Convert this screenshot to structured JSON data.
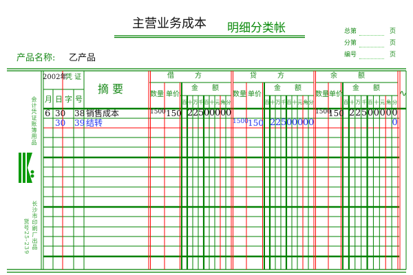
{
  "title": {
    "account": "主营业务成本",
    "ledger_type": "明细分类帐"
  },
  "pages": [
    {
      "label": "总第",
      "suffix": "页"
    },
    {
      "label": "分第",
      "suffix": "页"
    },
    {
      "label": "编号",
      "suffix": "页"
    }
  ],
  "product": {
    "label": "产品名称:",
    "value": "乙产品"
  },
  "side": {
    "top_text": "会计凭证账簿用品",
    "bottom_text_1": "长沙市印刷厂出品",
    "bottom_text_2": "货号25-239",
    "logo": "logo"
  },
  "header": {
    "year": "2002年",
    "voucher": "凭 证",
    "month": "月",
    "day": "日",
    "word": "字",
    "number": "号",
    "summary": "摘  要",
    "debit": "借　　　方",
    "credit": "贷　　　方",
    "balance": "余　　　额",
    "qty": "数量",
    "price": "单价",
    "amount": "金　　额",
    "digit_labels": [
      "百",
      "十",
      "万",
      "千",
      "百",
      "十",
      "元",
      "角",
      "分"
    ],
    "direction_mark": "∿"
  },
  "rows": [
    {
      "month": "6",
      "day": "30",
      "voucher_no": "38",
      "summary": "销售成本",
      "debit_qty": "1500",
      "debit_price": "150",
      "debit_amount": "22500000",
      "credit_qty": "",
      "credit_price": "",
      "credit_amount": "",
      "balance_qty": "1500",
      "balance_price": "150",
      "balance_amount": "22500000",
      "color": "#111111"
    },
    {
      "month": "",
      "day": "30",
      "voucher_no": "39",
      "summary": "结转",
      "debit_qty": "",
      "debit_price": "",
      "debit_amount": "",
      "credit_qty": "1500",
      "credit_price": "150",
      "credit_amount": "22500000",
      "balance_qty": "",
      "balance_price": "",
      "balance_amount": "0",
      "color": "#2233ee"
    }
  ],
  "colors": {
    "grid_green": "#008000",
    "grid_red": "#ff0000",
    "label_green": "#1a8a1a",
    "ink": "#111111",
    "blue_ink": "#2233ee"
  }
}
